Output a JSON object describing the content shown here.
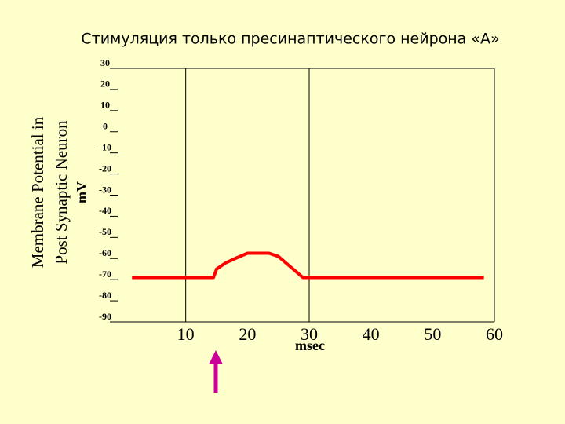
{
  "chart_data": {
    "type": "line",
    "title": "Стимуляция только пресинаптического нейрона «А»",
    "y_label_lines": [
      "Membrane Potential in",
      "Post Synaptic Neuron"
    ],
    "y_unit": "mV",
    "x_label": "msec",
    "x": [
      1.3,
      14.5,
      15,
      16.5,
      18,
      20,
      23.5,
      25,
      27,
      29,
      58.3
    ],
    "series": [
      {
        "color": "#ff0000",
        "values": [
          -69,
          -69,
          -65,
          -62,
          -60,
          -57.5,
          -57.5,
          -59,
          -64,
          -69,
          -69
        ]
      }
    ],
    "xlim": [
      0,
      60
    ],
    "xticks": [
      10,
      20,
      30,
      40,
      50,
      60
    ],
    "x_gridlines": [
      10,
      30
    ],
    "ylim": [
      -90,
      30
    ],
    "yticks": [
      -90,
      -80,
      -70,
      -60,
      -50,
      -40,
      -30,
      -20,
      -10,
      0,
      10,
      20,
      30
    ]
  }
}
